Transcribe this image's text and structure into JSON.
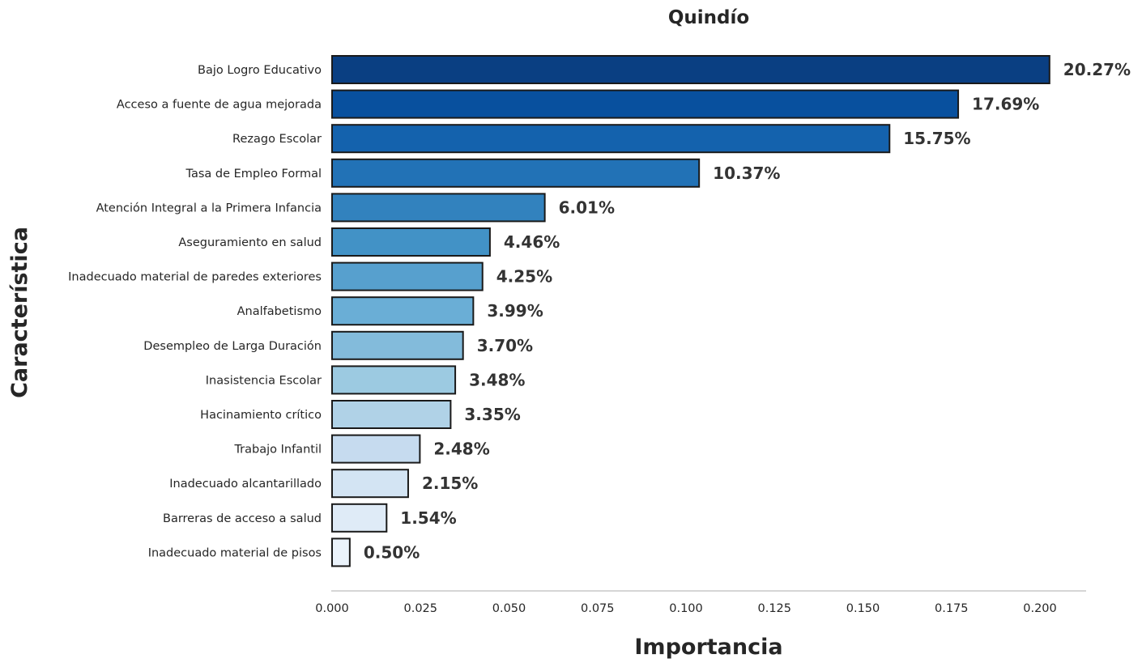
{
  "chart_data": {
    "type": "bar",
    "orientation": "horizontal",
    "title": "Quindío",
    "xlabel": "Importancia",
    "ylabel": "Característica",
    "xlim": [
      0,
      0.2135
    ],
    "x_ticks": [
      0.0,
      0.025,
      0.05,
      0.075,
      0.1,
      0.125,
      0.15,
      0.175,
      0.2
    ],
    "x_tick_labels": [
      "0.000",
      "0.025",
      "0.050",
      "0.075",
      "0.100",
      "0.125",
      "0.150",
      "0.175",
      "0.200"
    ],
    "grid": false,
    "legend": "none",
    "colormap": "Blues",
    "categories": [
      "Bajo Logro Educativo",
      "Acceso a fuente de agua mejorada",
      "Rezago Escolar",
      "Tasa de Empleo Formal",
      "Atención Integral a la Primera Infancia",
      "Aseguramiento en salud",
      "Inadecuado material de paredes exteriores",
      "Analfabetismo",
      "Desempleo de Larga Duración",
      "Inasistencia Escolar",
      "Hacinamiento crítico",
      "Trabajo Infantil",
      "Inadecuado alcantarillado",
      "Barreras de acceso a salud",
      "Inadecuado material de pisos"
    ],
    "values": [
      0.2027,
      0.1769,
      0.1575,
      0.1037,
      0.0601,
      0.0446,
      0.0425,
      0.0399,
      0.037,
      0.0348,
      0.0335,
      0.0248,
      0.0215,
      0.0154,
      0.005
    ],
    "data_labels": [
      "20.27%",
      "17.69%",
      "15.75%",
      "10.37%",
      "6.01%",
      "4.46%",
      "4.25%",
      "3.99%",
      "3.70%",
      "3.48%",
      "3.35%",
      "2.48%",
      "2.15%",
      "1.54%",
      "0.50%"
    ],
    "colors": [
      "#0a3f82",
      "#08509e",
      "#1462ad",
      "#2272b6",
      "#3282be",
      "#4292c6",
      "#57a0ce",
      "#6aaed6",
      "#83bbdb",
      "#9ccae1",
      "#b0d2e7",
      "#c6dbef",
      "#d3e4f3",
      "#dfebf7",
      "#ebf3fb"
    ]
  }
}
